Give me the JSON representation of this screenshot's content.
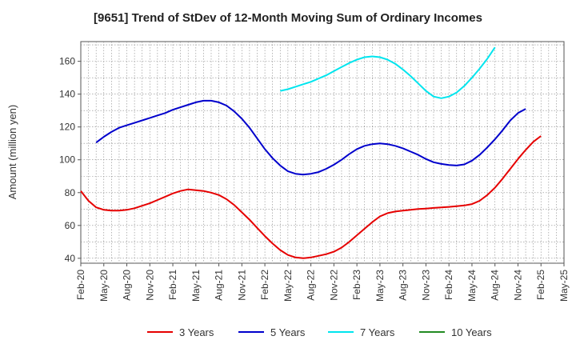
{
  "chart_data": {
    "type": "line",
    "title": "[9651]  Trend of StDev of 12-Month Moving Sum of Ordinary Incomes",
    "xlabel": "",
    "ylabel": "Amount (million yen)",
    "ylim": [
      37,
      172
    ],
    "yticks": [
      40,
      60,
      80,
      100,
      120,
      140,
      160
    ],
    "xlim": [
      0,
      63
    ],
    "grid": true,
    "legend_position": "bottom",
    "categories": [
      "Feb-20",
      "May-20",
      "Aug-20",
      "Nov-20",
      "Feb-21",
      "May-21",
      "Aug-21",
      "Nov-21",
      "Feb-22",
      "May-22",
      "Aug-22",
      "Nov-22",
      "Feb-23",
      "May-23",
      "Aug-23",
      "Nov-23",
      "Feb-24",
      "May-24",
      "Aug-24",
      "Nov-24",
      "Feb-25",
      "May-25"
    ],
    "category_positions": [
      0,
      3,
      6,
      9,
      12,
      15,
      18,
      21,
      24,
      27,
      30,
      33,
      36,
      39,
      42,
      45,
      48,
      51,
      54,
      57,
      60,
      63
    ],
    "series": [
      {
        "name": "3 Years",
        "color": "#e60000",
        "points": [
          [
            0,
            81
          ],
          [
            1,
            75
          ],
          [
            2,
            71
          ],
          [
            3,
            69.5
          ],
          [
            4,
            69
          ],
          [
            5,
            69
          ],
          [
            6,
            69.5
          ],
          [
            7,
            70.5
          ],
          [
            8,
            72
          ],
          [
            9,
            73.5
          ],
          [
            10,
            75.5
          ],
          [
            11,
            77.5
          ],
          [
            12,
            79.5
          ],
          [
            13,
            81
          ],
          [
            14,
            82
          ],
          [
            15,
            81.5
          ],
          [
            16,
            81
          ],
          [
            17,
            80
          ],
          [
            18,
            78.5
          ],
          [
            19,
            76
          ],
          [
            20,
            72.5
          ],
          [
            21,
            68
          ],
          [
            22,
            63.5
          ],
          [
            23,
            58.5
          ],
          [
            24,
            53.5
          ],
          [
            25,
            49
          ],
          [
            26,
            45
          ],
          [
            27,
            42
          ],
          [
            28,
            40.5
          ],
          [
            29,
            40
          ],
          [
            30,
            40.5
          ],
          [
            31,
            41.5
          ],
          [
            32,
            42.5
          ],
          [
            33,
            44
          ],
          [
            34,
            46.5
          ],
          [
            35,
            50
          ],
          [
            36,
            54
          ],
          [
            37,
            58
          ],
          [
            38,
            62
          ],
          [
            39,
            65.5
          ],
          [
            40,
            67.5
          ],
          [
            41,
            68.5
          ],
          [
            42,
            69
          ],
          [
            43,
            69.5
          ],
          [
            44,
            70
          ],
          [
            45,
            70.3
          ],
          [
            46,
            70.7
          ],
          [
            47,
            71
          ],
          [
            48,
            71.3
          ],
          [
            49,
            71.7
          ],
          [
            50,
            72.2
          ],
          [
            51,
            73
          ],
          [
            52,
            75
          ],
          [
            53,
            78.5
          ],
          [
            54,
            83
          ],
          [
            55,
            88.5
          ],
          [
            56,
            94.5
          ],
          [
            57,
            100.5
          ],
          [
            58,
            106
          ],
          [
            59,
            111
          ],
          [
            60,
            114.5
          ]
        ]
      },
      {
        "name": "5 Years",
        "color": "#0000cc",
        "points": [
          [
            2,
            110.5
          ],
          [
            3,
            114
          ],
          [
            4,
            117
          ],
          [
            5,
            119.5
          ],
          [
            6,
            121
          ],
          [
            7,
            122.5
          ],
          [
            8,
            124
          ],
          [
            9,
            125.5
          ],
          [
            10,
            127
          ],
          [
            11,
            128.5
          ],
          [
            12,
            130.5
          ],
          [
            13,
            132
          ],
          [
            14,
            133.5
          ],
          [
            15,
            135
          ],
          [
            16,
            136
          ],
          [
            17,
            136
          ],
          [
            18,
            135
          ],
          [
            19,
            133
          ],
          [
            20,
            129.5
          ],
          [
            21,
            125
          ],
          [
            22,
            119.5
          ],
          [
            23,
            113
          ],
          [
            24,
            106.5
          ],
          [
            25,
            101
          ],
          [
            26,
            96.5
          ],
          [
            27,
            93
          ],
          [
            28,
            91.5
          ],
          [
            29,
            91
          ],
          [
            30,
            91.5
          ],
          [
            31,
            92.5
          ],
          [
            32,
            94.5
          ],
          [
            33,
            97
          ],
          [
            34,
            100
          ],
          [
            35,
            103.5
          ],
          [
            36,
            106.5
          ],
          [
            37,
            108.5
          ],
          [
            38,
            109.5
          ],
          [
            39,
            110
          ],
          [
            40,
            109.5
          ],
          [
            41,
            108.5
          ],
          [
            42,
            107
          ],
          [
            43,
            105
          ],
          [
            44,
            103
          ],
          [
            45,
            100.5
          ],
          [
            46,
            98.5
          ],
          [
            47,
            97.5
          ],
          [
            48,
            96.8
          ],
          [
            49,
            96.5
          ],
          [
            50,
            97.2
          ],
          [
            51,
            99.5
          ],
          [
            52,
            103
          ],
          [
            53,
            107.5
          ],
          [
            54,
            112.5
          ],
          [
            55,
            118
          ],
          [
            56,
            124
          ],
          [
            57,
            128.5
          ],
          [
            58,
            131
          ]
        ]
      },
      {
        "name": "7 Years",
        "color": "#00e5ee",
        "points": [
          [
            26,
            142
          ],
          [
            27,
            143
          ],
          [
            28,
            144.5
          ],
          [
            29,
            146
          ],
          [
            30,
            147.5
          ],
          [
            31,
            149.5
          ],
          [
            32,
            151.5
          ],
          [
            33,
            154
          ],
          [
            34,
            156.5
          ],
          [
            35,
            159
          ],
          [
            36,
            161
          ],
          [
            37,
            162.5
          ],
          [
            38,
            163
          ],
          [
            39,
            162.5
          ],
          [
            40,
            161
          ],
          [
            41,
            158.5
          ],
          [
            42,
            155
          ],
          [
            43,
            151
          ],
          [
            44,
            146.5
          ],
          [
            45,
            142
          ],
          [
            46,
            138.5
          ],
          [
            47,
            137.5
          ],
          [
            48,
            138.5
          ],
          [
            49,
            141
          ],
          [
            50,
            145
          ],
          [
            51,
            150
          ],
          [
            52,
            155.5
          ],
          [
            53,
            161.5
          ],
          [
            54,
            168.5
          ]
        ]
      },
      {
        "name": "10 Years",
        "color": "#228b22",
        "points": []
      }
    ]
  }
}
